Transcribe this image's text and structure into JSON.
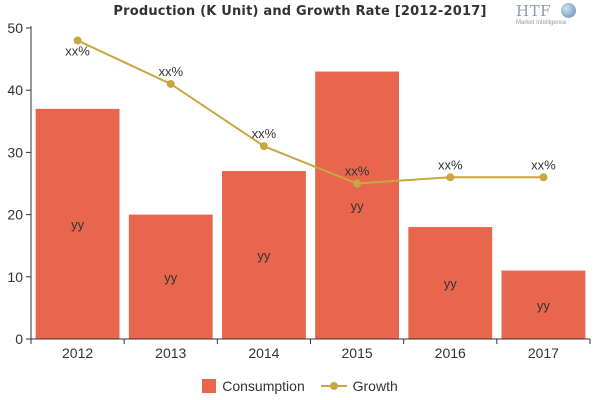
{
  "chart_data": {
    "type": "bar",
    "title": "Production (K Unit) and Growth Rate [2012-2017]",
    "categories": [
      "2012",
      "2013",
      "2014",
      "2015",
      "2016",
      "2017"
    ],
    "ylim": [
      0,
      50
    ],
    "yticks": [
      "0",
      "10",
      "20",
      "30",
      "40",
      "50"
    ],
    "grid": false,
    "legend_position": "bottom",
    "series": [
      {
        "name": "Consumption",
        "type": "bar",
        "color": "#e8664d",
        "values": [
          37,
          20,
          27,
          43,
          18,
          11
        ],
        "labels": [
          "yy",
          "yy",
          "yy",
          "yy",
          "yy",
          "yy"
        ]
      },
      {
        "name": "Growth",
        "type": "line",
        "color": "#c8a640",
        "values": [
          48,
          41,
          31,
          25,
          26,
          26
        ],
        "labels": [
          "xx%",
          "xx%",
          "xx%",
          "xx%",
          "xx%",
          "xx%"
        ]
      }
    ]
  },
  "logo": {
    "text": "HTF",
    "subtext": "Market Intelligence"
  }
}
